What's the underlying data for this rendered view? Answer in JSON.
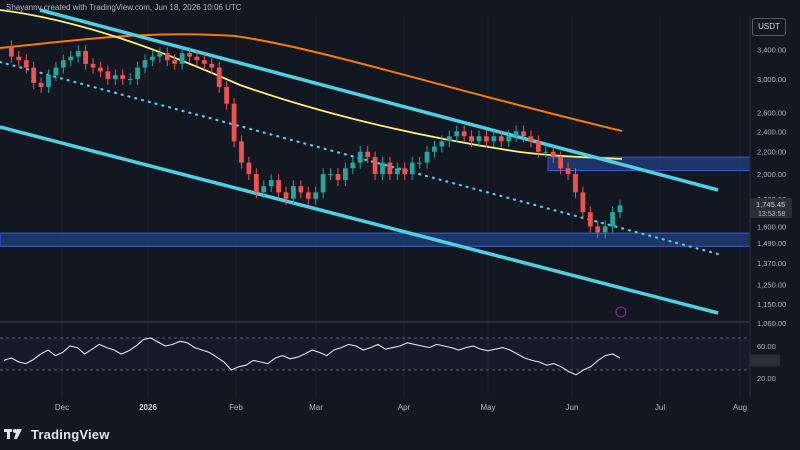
{
  "header": {
    "credit": "Shayannv created with TradingView.com, Jun 18, 2026 10:06 UTC"
  },
  "symbol_box": {
    "label": "USDT"
  },
  "footer": {
    "brand": "TradingView"
  },
  "chart_data": {
    "type": "candlestick",
    "price_axis": {
      "ticks": [
        "3,400.00",
        "3,000.00",
        "2,600.00",
        "2,400.00",
        "2,200.00",
        "2,000.00",
        "1,800.00",
        "1,600.00",
        "1,490.00",
        "1,370.00",
        "1,250.00",
        "1,150.00",
        "1,060.00"
      ],
      "scale": "log"
    },
    "time_axis": {
      "ticks": [
        "Dec",
        "2026",
        "Feb",
        "Mar",
        "Apr",
        "May",
        "Jun",
        "Jul",
        "Aug"
      ]
    },
    "last_price": {
      "value": "1,745.45",
      "countdown": "13:53:58"
    },
    "price_series_approx": [
      3450,
      3300,
      3250,
      3150,
      2950,
      2900,
      3050,
      3150,
      3250,
      3300,
      3380,
      3200,
      3150,
      3100,
      3000,
      3050,
      3000,
      3000,
      3150,
      3250,
      3300,
      3350,
      3250,
      3200,
      3350,
      3300,
      3250,
      3200,
      3150,
      2900,
      2700,
      2300,
      2100,
      2000,
      1850,
      1900,
      1950,
      1850,
      1800,
      1900,
      1850,
      1800,
      1850,
      2000,
      2000,
      1950,
      2050,
      2100,
      2200,
      2150,
      2000,
      2100,
      2000,
      2050,
      2000,
      2100,
      2100,
      2200,
      2250,
      2300,
      2350,
      2400,
      2350,
      2300,
      2350,
      2300,
      2350,
      2300,
      2350,
      2400,
      2350,
      2300,
      2200,
      2200,
      2150,
      2050,
      2000,
      1850,
      1700,
      1600,
      1560,
      1600,
      1700,
      1750
    ],
    "indicators": [
      {
        "name": "MA-orange",
        "color": "#f57c00"
      },
      {
        "name": "MA-yellow",
        "color": "#fff176"
      }
    ],
    "zones": [
      {
        "role": "resistance",
        "from": 2030,
        "to": 2150
      },
      {
        "role": "support",
        "from": 1470,
        "to": 1555
      }
    ],
    "rsi": {
      "ticks": [
        "60.00",
        "40.00",
        "20.00"
      ],
      "levels": [
        70,
        30
      ],
      "series_approx": [
        42,
        45,
        40,
        38,
        43,
        50,
        55,
        48,
        52,
        60,
        58,
        50,
        56,
        62,
        58,
        55,
        50,
        54,
        60,
        68,
        70,
        65,
        60,
        62,
        66,
        64,
        58,
        55,
        52,
        46,
        40,
        30,
        34,
        36,
        42,
        40,
        38,
        45,
        48,
        44,
        46,
        50,
        55,
        52,
        48,
        55,
        58,
        62,
        60,
        55,
        58,
        62,
        56,
        58,
        60,
        64,
        62,
        60,
        58,
        62,
        60,
        58,
        55,
        58,
        60,
        56,
        54,
        56,
        58,
        55,
        50,
        45,
        42,
        40,
        36,
        38,
        34,
        28,
        24,
        30,
        34,
        42,
        48,
        50,
        45
      ]
    }
  }
}
